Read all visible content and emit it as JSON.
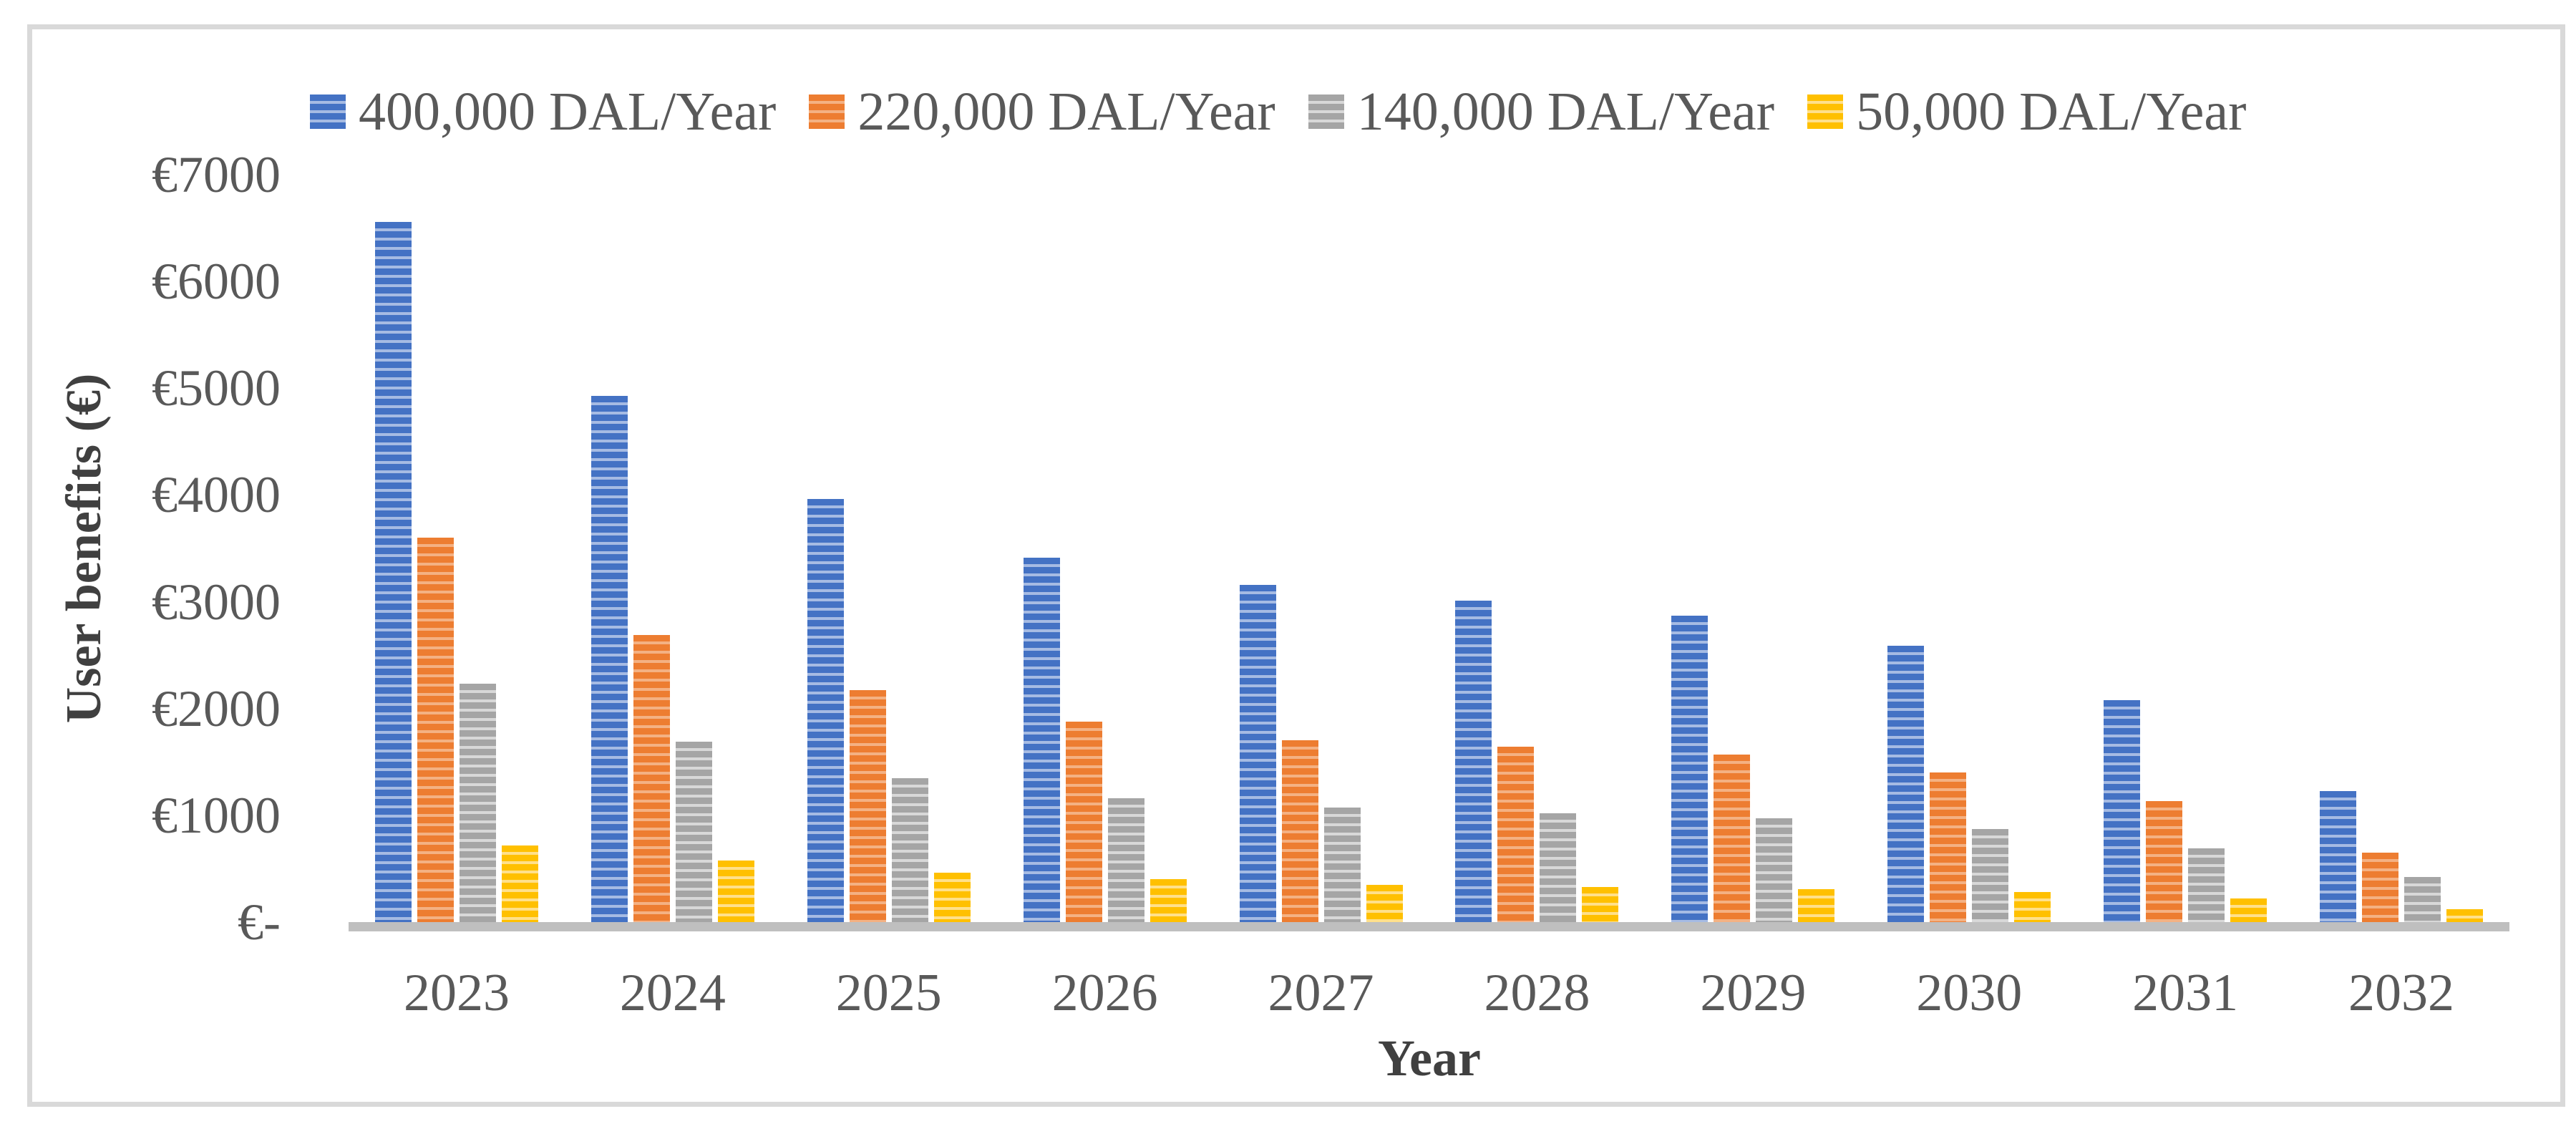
{
  "chart_data": {
    "type": "bar",
    "title": "",
    "xlabel": "Year",
    "ylabel": "User benefits (€)",
    "categories": [
      "2023",
      "2024",
      "2025",
      "2026",
      "2027",
      "2028",
      "2029",
      "2030",
      "2031",
      "2032"
    ],
    "series": [
      {
        "name": "400,000 DAL/Year",
        "color": "#4472C4",
        "color_light": "#A6BBE3",
        "values": [
          6560,
          4930,
          3960,
          3410,
          3160,
          3010,
          2870,
          2590,
          2080,
          1230
        ]
      },
      {
        "name": "220,000 DAL/Year",
        "color": "#ED7D31",
        "color_light": "#F4B183",
        "values": [
          3600,
          2690,
          2170,
          1880,
          1700,
          1640,
          1570,
          1400,
          1130,
          650
        ]
      },
      {
        "name": "140,000 DAL/Year",
        "color": "#A5A5A5",
        "color_light": "#D8D8D8",
        "values": [
          2230,
          1690,
          1350,
          1160,
          1070,
          1020,
          970,
          870,
          690,
          420
        ]
      },
      {
        "name": "50,000 DAL/Year",
        "color": "#FFC000",
        "color_light": "#FFE08A",
        "values": [
          720,
          580,
          460,
          400,
          350,
          330,
          310,
          280,
          220,
          120
        ]
      }
    ],
    "ylim": [
      0,
      7000
    ],
    "yticks": [
      {
        "value": 7000,
        "label": "€7000"
      },
      {
        "value": 6000,
        "label": "€6000"
      },
      {
        "value": 5000,
        "label": "€5000"
      },
      {
        "value": 4000,
        "label": "€4000"
      },
      {
        "value": 3000,
        "label": "€3000"
      },
      {
        "value": 2000,
        "label": "€2000"
      },
      {
        "value": 1000,
        "label": "€1000"
      },
      {
        "value": 0,
        "label": "€-"
      }
    ],
    "legend_position": "top",
    "grid": false,
    "bar_pattern": "horizontal-stripes"
  },
  "colors": {
    "background": "#FFFFFF",
    "frame_border": "#D9D9D9",
    "axis_line": "#BFBFBF",
    "tick_text": "#595959",
    "title_text": "#404040"
  }
}
